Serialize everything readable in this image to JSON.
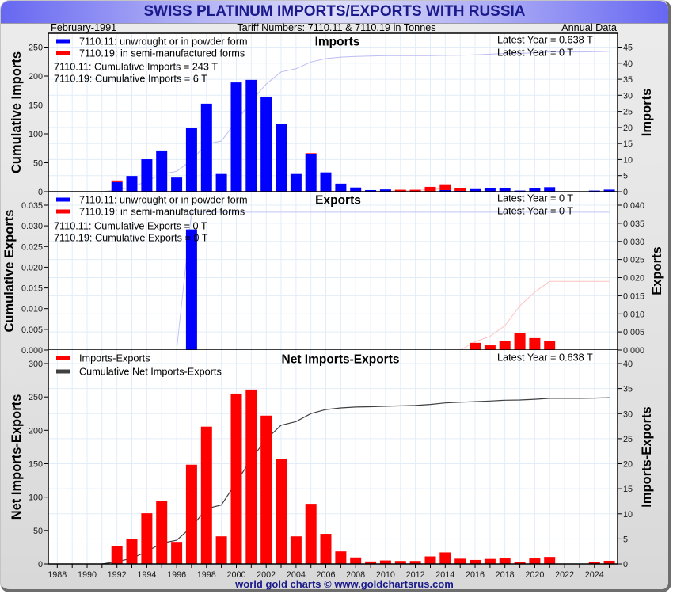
{
  "header": {
    "title": "SWISS PLATINUM IMPORTS/EXPORTS WITH RUSSIA",
    "date": "February-1991",
    "tariff": "Tariff Numbers: 7110.11 & 7110.19 in Tonnes",
    "frequency": "Annual Data"
  },
  "footer": {
    "credit": "world gold charts © www.goldchartsrus.com"
  },
  "colors": {
    "title_text": "#1a1a8c",
    "series_7110_11": "#0000ff",
    "series_7110_19": "#ff0000",
    "net_bars": "#ff0000",
    "net_cumulative": "#404040",
    "grid": "#e3edf7"
  },
  "chart_data": [
    {
      "type": "bar",
      "title": "Imports",
      "ylabel_left": "Cumulative Imports",
      "ylabel_right": "Imports",
      "grid": true,
      "x": [
        1991,
        1992,
        1993,
        1994,
        1995,
        1996,
        1997,
        1998,
        1999,
        2000,
        2001,
        2002,
        2003,
        2004,
        2005,
        2006,
        2007,
        2008,
        2009,
        2010,
        2011,
        2012,
        2013,
        2014,
        2015,
        2016,
        2017,
        2018,
        2019,
        2020,
        2021,
        2022,
        2023,
        2024,
        2025
      ],
      "xaxis": {
        "range": [
          1987.4,
          2025.55
        ]
      },
      "yaxis_left": {
        "ticks": [
          "0",
          "50",
          "100",
          "150",
          "200",
          "250"
        ]
      },
      "yaxis_right": {
        "ticks": [
          "0",
          "5",
          "10",
          "15",
          "20",
          "25",
          "30",
          "35",
          "40",
          "45"
        ]
      },
      "legend": [
        {
          "label": "7110.11: unwrought or in powder form",
          "color": "#0000ff"
        },
        {
          "label": "7110.19: in semi-manufactured forms",
          "color": "#ff0000"
        }
      ],
      "annotations": [
        "7110.11: Cumulative Imports = 243 T",
        "7110.19: Cumulative Imports = 6 T"
      ],
      "latest": [
        "Latest Year = 0.638 T",
        "Latest Year = 0 T"
      ],
      "series": [
        {
          "axis": "right",
          "color": "#0000ff",
          "stacked": true,
          "values": [
            0,
            3.0,
            4.9,
            10.1,
            12.6,
            4.4,
            19.8,
            27.4,
            5.5,
            34.0,
            34.8,
            29.6,
            21.0,
            5.5,
            11.6,
            6.0,
            2.5,
            1.3,
            0.5,
            0.7,
            0,
            0,
            0,
            0.5,
            0.25,
            0.8,
            1.0,
            1.1,
            0.35,
            1.1,
            1.4,
            0,
            0,
            0.35,
            0.638
          ]
        },
        {
          "axis": "right",
          "color": "#ff0000",
          "stacked": true,
          "values": [
            0,
            0.5,
            0,
            0,
            0,
            0,
            0,
            0,
            0,
            0,
            0,
            0,
            0,
            0,
            0.4,
            0,
            0,
            0,
            0,
            0,
            0.6,
            0.6,
            1.5,
            1.8,
            0.8,
            0,
            0,
            0,
            0,
            0,
            0,
            0,
            0,
            0,
            0
          ]
        }
      ],
      "lines": [
        {
          "axis": "left",
          "color": "#bcbcf2",
          "cumulative_of": 0
        },
        {
          "axis": "left",
          "color": "#ffbcbc",
          "cumulative_of": 1
        }
      ]
    },
    {
      "type": "bar",
      "title": "Exports",
      "ylabel_left": "Cumulative Exports",
      "ylabel_right": "Exports",
      "grid": true,
      "x": [
        1991,
        1992,
        1993,
        1994,
        1995,
        1996,
        1997,
        1998,
        1999,
        2000,
        2001,
        2002,
        2003,
        2004,
        2005,
        2006,
        2007,
        2008,
        2009,
        2010,
        2011,
        2012,
        2013,
        2014,
        2015,
        2016,
        2017,
        2018,
        2019,
        2020,
        2021,
        2022,
        2023,
        2024,
        2025
      ],
      "xaxis": {
        "range": [
          1987.4,
          2025.55
        ]
      },
      "yaxis_left": {
        "ticks": [
          "0.000",
          "0.005",
          "0.010",
          "0.015",
          "0.020",
          "0.025",
          "0.030",
          "0.035"
        ]
      },
      "yaxis_right": {
        "ticks": [
          "0.000",
          "0.005",
          "0.010",
          "0.015",
          "0.020",
          "0.025",
          "0.030",
          "0.035",
          "0.040"
        ]
      },
      "legend": [
        {
          "label": "7110.11: unwrought or in powder form",
          "color": "#0000ff"
        },
        {
          "label": "7110.19: in semi-manufactured forms",
          "color": "#ff0000"
        }
      ],
      "annotations": [
        "7110.11: Cumulative Exports = 0 T",
        "7110.19: Cumulative Exports = 0 T"
      ],
      "latest": [
        "Latest Year = 0 T",
        "Latest Year = 0 T"
      ],
      "series": [
        {
          "axis": "right",
          "color": "#0000ff",
          "stacked": true,
          "values": [
            0,
            0,
            0,
            0,
            0,
            0,
            0.0333,
            0,
            0,
            0,
            0,
            0,
            0,
            0,
            0,
            0,
            0,
            0,
            0,
            0,
            0,
            0,
            0,
            0,
            0,
            0,
            0,
            0,
            0,
            0,
            0,
            0,
            0,
            0,
            0
          ]
        },
        {
          "axis": "right",
          "color": "#ff0000",
          "stacked": true,
          "values": [
            0,
            0,
            0,
            0,
            0,
            0,
            0,
            0,
            0,
            0,
            0,
            0,
            0,
            0,
            0,
            0,
            0,
            0,
            0,
            0,
            0,
            0,
            0,
            0,
            0,
            0.002,
            0.0013,
            0.0026,
            0.0048,
            0.0033,
            0.0026,
            0,
            0,
            0,
            0
          ]
        }
      ],
      "lines": [
        {
          "axis": "left",
          "color": "#c4c4f7",
          "cumulative_of": 0
        },
        {
          "axis": "left",
          "color": "#ffc2c2",
          "cumulative_of": 1
        }
      ]
    },
    {
      "type": "bar",
      "title": "Net Imports-Exports",
      "ylabel_left": "Net Imports-Exports",
      "ylabel_right": "Imports-Exports",
      "grid": true,
      "x": [
        1991,
        1992,
        1993,
        1994,
        1995,
        1996,
        1997,
        1998,
        1999,
        2000,
        2001,
        2002,
        2003,
        2004,
        2005,
        2006,
        2007,
        2008,
        2009,
        2010,
        2011,
        2012,
        2013,
        2014,
        2015,
        2016,
        2017,
        2018,
        2019,
        2020,
        2021,
        2022,
        2023,
        2024,
        2025
      ],
      "xaxis": {
        "range": [
          1987.4,
          2025.55
        ],
        "ticks": [
          "1988",
          "1990",
          "1992",
          "1994",
          "1996",
          "1998",
          "2000",
          "2002",
          "2004",
          "2006",
          "2008",
          "2010",
          "2012",
          "2014",
          "2016",
          "2018",
          "2020",
          "2022",
          "2024"
        ]
      },
      "yaxis_left": {
        "ticks": [
          "0",
          "50",
          "100",
          "150",
          "200",
          "250",
          "300"
        ]
      },
      "yaxis_right": {
        "ticks": [
          "0",
          "5",
          "10",
          "15",
          "20",
          "25",
          "30",
          "35",
          "40"
        ]
      },
      "legend": [
        {
          "label": "Imports-Exports",
          "color": "#ff0000"
        },
        {
          "label": "Cumulative Net Imports-Exports",
          "color": "#404040"
        }
      ],
      "annotations": [],
      "latest": [
        "Latest Year = 0.638 T"
      ],
      "series": [
        {
          "axis": "right",
          "color": "#ff0000",
          "stacked": false,
          "values": [
            0,
            3.5,
            4.9,
            10.1,
            12.6,
            4.4,
            19.8,
            27.4,
            5.5,
            34.0,
            34.8,
            29.6,
            21.0,
            5.5,
            12.0,
            6.0,
            2.5,
            1.3,
            0.5,
            0.7,
            0.6,
            0.6,
            1.5,
            2.3,
            1.05,
            0.8,
            1.0,
            1.1,
            0.35,
            1.1,
            1.4,
            0,
            0,
            0.35,
            0.638
          ]
        }
      ],
      "lines": [
        {
          "axis": "left",
          "color": "#404040",
          "cumulative_of": 0
        }
      ]
    }
  ]
}
